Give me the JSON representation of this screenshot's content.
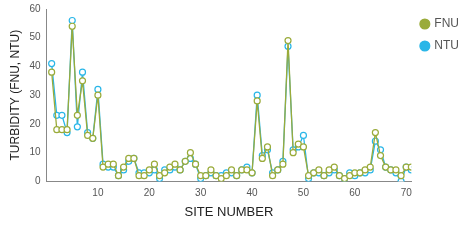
{
  "chart_data": {
    "type": "line",
    "x_label": "SITE NUMBER",
    "y_label": "TURBIDITY (FNU, NTU)",
    "x": [
      1,
      2,
      3,
      4,
      5,
      6,
      7,
      8,
      9,
      10,
      11,
      12,
      13,
      14,
      15,
      16,
      17,
      18,
      19,
      20,
      21,
      22,
      23,
      24,
      25,
      26,
      27,
      28,
      29,
      30,
      31,
      32,
      33,
      34,
      35,
      36,
      37,
      38,
      39,
      40,
      41,
      42,
      43,
      44,
      45,
      46,
      47,
      48,
      49,
      50,
      51,
      52,
      53,
      54,
      55,
      56,
      57,
      58,
      59,
      60,
      61,
      62,
      63,
      64,
      65,
      66,
      67,
      68,
      69,
      70,
      71
    ],
    "series": [
      {
        "name": "FNU",
        "color": "#9aab3a",
        "marker": "circle",
        "line_style": "solid",
        "values": [
          38,
          18,
          18,
          18,
          54,
          23,
          35,
          16,
          15,
          30,
          5,
          6,
          6,
          2,
          5,
          8,
          8,
          2,
          2,
          4,
          6,
          2,
          3,
          5,
          6,
          4,
          7,
          10,
          6,
          2,
          2,
          4,
          2,
          1,
          2,
          4,
          2,
          4,
          4,
          3,
          28,
          8,
          12,
          2,
          4,
          6,
          49,
          10,
          13,
          12,
          2,
          3,
          4,
          2,
          4,
          5,
          2,
          1,
          2,
          3,
          3,
          4,
          5,
          17,
          9,
          5,
          4,
          4,
          2,
          5,
          5
        ]
      },
      {
        "name": "NTU",
        "color": "#29b6e8",
        "marker": "circle",
        "line_style": "solid",
        "values": [
          41,
          23,
          23,
          17,
          56,
          19,
          38,
          17,
          15,
          32,
          6,
          5,
          5,
          2,
          4,
          7,
          8,
          3,
          3,
          3,
          4,
          1,
          4,
          4,
          5,
          4,
          7,
          8,
          6,
          1,
          2,
          3,
          2,
          2,
          3,
          3,
          2,
          4,
          5,
          3,
          30,
          9,
          11,
          3,
          4,
          7,
          47,
          11,
          12,
          16,
          1,
          3,
          3,
          2,
          3,
          4,
          2,
          1,
          3,
          2,
          3,
          3,
          4,
          14,
          11,
          5,
          4,
          3,
          0,
          5,
          4
        ]
      }
    ],
    "xlim": [
      0,
      71
    ],
    "xticks": [
      10,
      20,
      30,
      40,
      50,
      60,
      70
    ],
    "ylim": [
      0,
      60
    ],
    "yticks": [
      0,
      10,
      20,
      30,
      40,
      50,
      60
    ],
    "grid": false,
    "legend": "right"
  }
}
